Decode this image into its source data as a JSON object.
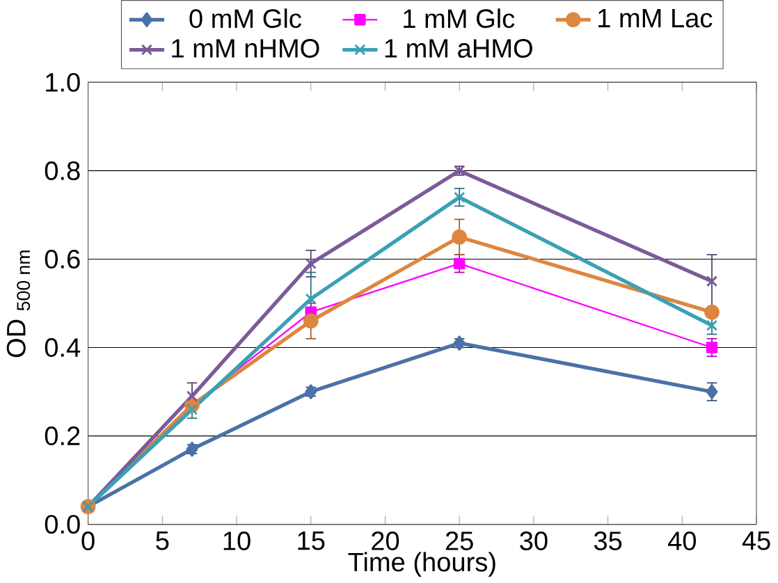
{
  "chart_data": {
    "type": "line",
    "xlabel": "Time (hours)",
    "ylabel": "OD $_{500 nm}$",
    "xlim": [
      0,
      45
    ],
    "xticks": [
      0,
      5,
      10,
      15,
      20,
      25,
      30,
      35,
      40,
      45
    ],
    "ylim": [
      0,
      1
    ],
    "yticks": [
      {
        "value": 0,
        "label": "0.0"
      },
      {
        "value": 0.2,
        "label": "0.2"
      },
      {
        "value": 0.4,
        "label": "0.4"
      },
      {
        "value": 0.6,
        "label": "0.6"
      },
      {
        "value": 0.8,
        "label": "0.8"
      },
      {
        "value": 1,
        "label": "1.0"
      }
    ],
    "grid": "y",
    "legend": "top",
    "x": [
      0,
      7,
      15,
      25,
      42
    ],
    "series": [
      {
        "name": "0 mM Glc",
        "color": "#4a72a8",
        "marker": "diamond",
        "values": [
          0.04,
          0.17,
          0.3,
          0.41,
          0.3
        ],
        "errors": [
          null,
          0.01,
          0.01,
          0.01,
          0.02
        ]
      },
      {
        "name": "1 mM Glc",
        "color": "#ff00ff",
        "marker": "square",
        "values": [
          0.04,
          0.27,
          0.48,
          0.59,
          0.4
        ],
        "errors": [
          null,
          null,
          null,
          0.02,
          0.02
        ]
      },
      {
        "name": "1 mM Lac",
        "color": "#dd8640",
        "marker": "circle",
        "values": [
          0.04,
          0.27,
          0.46,
          0.65,
          0.48
        ],
        "errors": [
          null,
          null,
          0.04,
          0.04,
          null
        ]
      },
      {
        "name": "1 mM nHMO",
        "color": "#7b5a9a",
        "marker": "cross",
        "values": [
          0.04,
          0.29,
          0.59,
          0.8,
          0.55
        ],
        "errors": [
          null,
          0.03,
          0.03,
          0.01,
          0.06
        ]
      },
      {
        "name": "1 mM aHMO",
        "color": "#3ba0b5",
        "marker": "cross",
        "values": [
          0.04,
          0.26,
          0.51,
          0.74,
          0.45
        ],
        "errors": [
          null,
          0.02,
          0.06,
          0.02,
          0.02
        ]
      }
    ]
  }
}
